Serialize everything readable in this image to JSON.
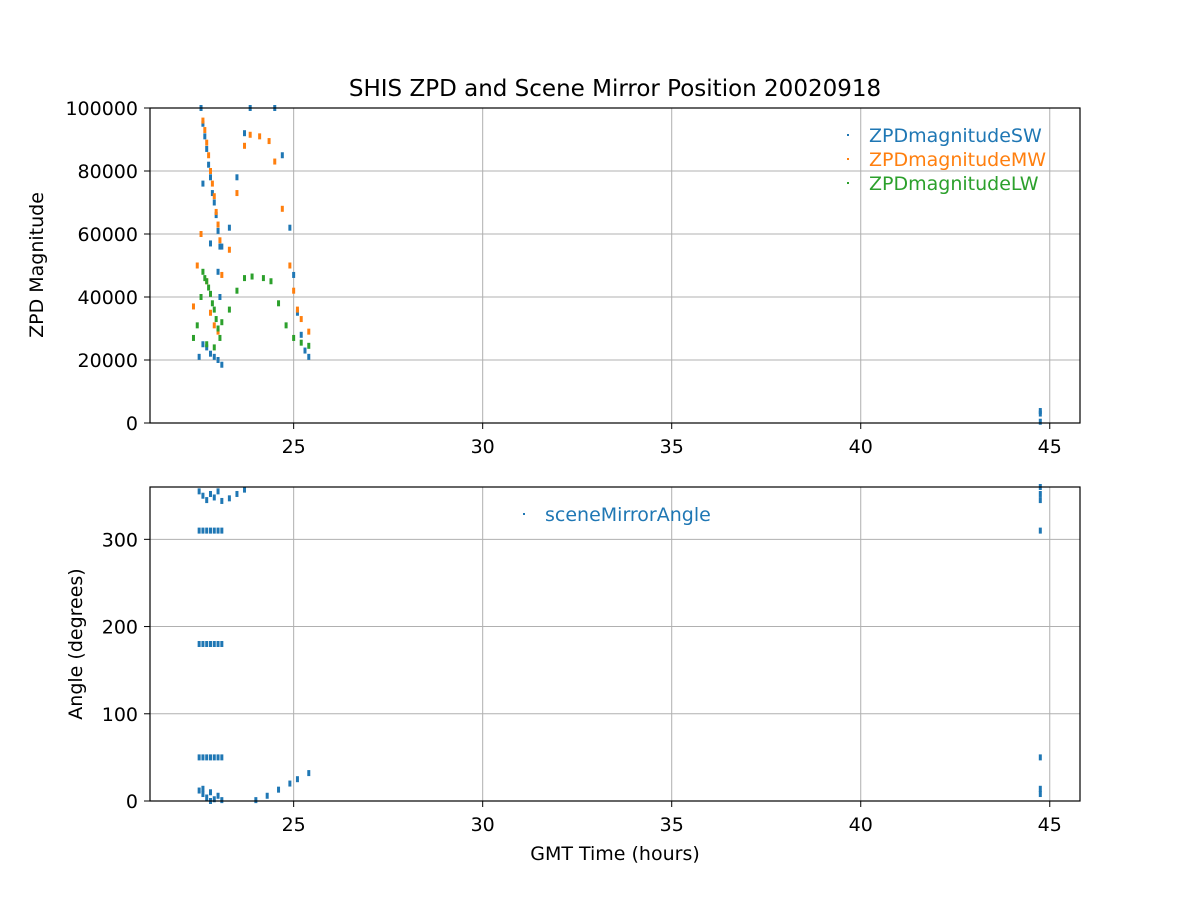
{
  "chart_data": [
    {
      "type": "scatter",
      "title": "SHIS ZPD and Scene Mirror Position 20020918",
      "xlabel": "",
      "ylabel": "ZPD Magnitude",
      "xlim": [
        21.2,
        45.8
      ],
      "ylim": [
        0,
        100000
      ],
      "xticks": [
        25,
        30,
        35,
        40,
        45
      ],
      "yticks": [
        0,
        20000,
        40000,
        60000,
        80000,
        100000
      ],
      "grid": true,
      "legend_position": "top-right",
      "series": [
        {
          "name": "ZPDmagnitudeSW",
          "color": "#1f77b4",
          "points": [
            [
              22.55,
              100000
            ],
            [
              22.6,
              95000
            ],
            [
              22.65,
              91000
            ],
            [
              22.7,
              87000
            ],
            [
              22.75,
              82000
            ],
            [
              22.8,
              78000
            ],
            [
              22.85,
              73000
            ],
            [
              22.9,
              70000
            ],
            [
              22.95,
              66000
            ],
            [
              23.0,
              61000
            ],
            [
              23.05,
              56000
            ],
            [
              22.6,
              76000
            ],
            [
              22.8,
              57000
            ],
            [
              23.0,
              48000
            ],
            [
              23.05,
              40000
            ],
            [
              22.6,
              25000
            ],
            [
              22.7,
              24000
            ],
            [
              22.8,
              22000
            ],
            [
              22.9,
              21000
            ],
            [
              23.0,
              20000
            ],
            [
              23.1,
              18500
            ],
            [
              22.5,
              21000
            ],
            [
              23.1,
              56000
            ],
            [
              23.3,
              62000
            ],
            [
              23.5,
              78000
            ],
            [
              23.7,
              92000
            ],
            [
              23.85,
              100000
            ],
            [
              24.5,
              100000
            ],
            [
              24.7,
              85000
            ],
            [
              24.9,
              62000
            ],
            [
              25.0,
              47000
            ],
            [
              25.1,
              35000
            ],
            [
              25.2,
              28000
            ],
            [
              25.3,
              23000
            ],
            [
              25.4,
              21000
            ],
            [
              44.75,
              3000
            ],
            [
              44.75,
              3800
            ],
            [
              44.75,
              400
            ]
          ]
        },
        {
          "name": "ZPDmagnitudeMW",
          "color": "#ff7f0e",
          "points": [
            [
              22.35,
              37000
            ],
            [
              22.45,
              50000
            ],
            [
              22.55,
              60000
            ],
            [
              22.6,
              96000
            ],
            [
              22.65,
              93000
            ],
            [
              22.7,
              89000
            ],
            [
              22.75,
              85000
            ],
            [
              22.8,
              80000
            ],
            [
              22.85,
              76000
            ],
            [
              22.9,
              72000
            ],
            [
              22.95,
              67000
            ],
            [
              23.0,
              63000
            ],
            [
              23.05,
              58000
            ],
            [
              22.7,
              45000
            ],
            [
              22.8,
              35000
            ],
            [
              22.9,
              31000
            ],
            [
              23.0,
              29000
            ],
            [
              23.1,
              47000
            ],
            [
              23.3,
              55000
            ],
            [
              23.5,
              73000
            ],
            [
              23.7,
              88000
            ],
            [
              23.85,
              91500
            ],
            [
              24.1,
              91000
            ],
            [
              24.35,
              89500
            ],
            [
              24.5,
              83000
            ],
            [
              24.7,
              68000
            ],
            [
              24.9,
              50000
            ],
            [
              25.0,
              42000
            ],
            [
              25.1,
              36000
            ],
            [
              25.2,
              33000
            ],
            [
              25.4,
              29000
            ]
          ]
        },
        {
          "name": "ZPDmagnitudeLW",
          "color": "#2ca02c",
          "points": [
            [
              22.35,
              27000
            ],
            [
              22.45,
              31000
            ],
            [
              22.55,
              40000
            ],
            [
              22.6,
              48000
            ],
            [
              22.65,
              46000
            ],
            [
              22.7,
              45000
            ],
            [
              22.75,
              43000
            ],
            [
              22.8,
              41000
            ],
            [
              22.85,
              38000
            ],
            [
              22.9,
              36000
            ],
            [
              22.95,
              33000
            ],
            [
              23.0,
              30000
            ],
            [
              23.05,
              27000
            ],
            [
              22.7,
              25000
            ],
            [
              22.9,
              24000
            ],
            [
              23.1,
              32000
            ],
            [
              23.3,
              36000
            ],
            [
              23.5,
              42000
            ],
            [
              23.7,
              46000
            ],
            [
              23.9,
              46500
            ],
            [
              24.2,
              46000
            ],
            [
              24.4,
              45000
            ],
            [
              24.6,
              38000
            ],
            [
              24.8,
              31000
            ],
            [
              25.0,
              27000
            ],
            [
              25.2,
              25500
            ],
            [
              25.4,
              24500
            ]
          ]
        }
      ]
    },
    {
      "type": "scatter",
      "title": "",
      "xlabel": "GMT Time (hours)",
      "ylabel": "Angle (degrees)",
      "xlim": [
        21.2,
        45.8
      ],
      "ylim": [
        0,
        360
      ],
      "xticks": [
        25,
        30,
        35,
        40,
        45
      ],
      "yticks": [
        0,
        100,
        200,
        300
      ],
      "grid": true,
      "legend_position": "upper-center",
      "series": [
        {
          "name": "sceneMirrorAngle",
          "color": "#1f77b4",
          "points": [
            [
              22.5,
              355
            ],
            [
              22.6,
              350
            ],
            [
              22.7,
              345
            ],
            [
              22.8,
              352
            ],
            [
              22.9,
              348
            ],
            [
              23.0,
              355
            ],
            [
              23.1,
              344
            ],
            [
              23.3,
              347
            ],
            [
              23.5,
              352
            ],
            [
              23.7,
              357
            ],
            [
              22.5,
              310
            ],
            [
              22.6,
              310
            ],
            [
              22.7,
              310
            ],
            [
              22.8,
              310
            ],
            [
              22.9,
              310
            ],
            [
              23.0,
              310
            ],
            [
              23.1,
              310
            ],
            [
              22.5,
              180
            ],
            [
              22.6,
              180
            ],
            [
              22.7,
              180
            ],
            [
              22.8,
              180
            ],
            [
              22.9,
              180
            ],
            [
              23.0,
              180
            ],
            [
              23.1,
              180
            ],
            [
              22.5,
              50
            ],
            [
              22.6,
              50
            ],
            [
              22.7,
              50
            ],
            [
              22.8,
              50
            ],
            [
              22.9,
              50
            ],
            [
              23.0,
              50
            ],
            [
              23.1,
              50
            ],
            [
              22.5,
              12
            ],
            [
              22.6,
              8
            ],
            [
              22.7,
              4
            ],
            [
              22.8,
              10
            ],
            [
              22.9,
              2
            ],
            [
              23.0,
              6
            ],
            [
              23.1,
              1
            ],
            [
              22.6,
              14
            ],
            [
              22.8,
              0
            ],
            [
              24.0,
              1
            ],
            [
              24.3,
              6
            ],
            [
              24.6,
              13
            ],
            [
              24.9,
              20
            ],
            [
              25.1,
              25
            ],
            [
              25.4,
              32
            ],
            [
              44.75,
              360
            ],
            [
              44.75,
              352
            ],
            [
              44.75,
              345
            ],
            [
              44.75,
              310
            ],
            [
              44.75,
              50
            ],
            [
              44.75,
              14
            ],
            [
              44.75,
              8
            ]
          ]
        }
      ]
    }
  ]
}
